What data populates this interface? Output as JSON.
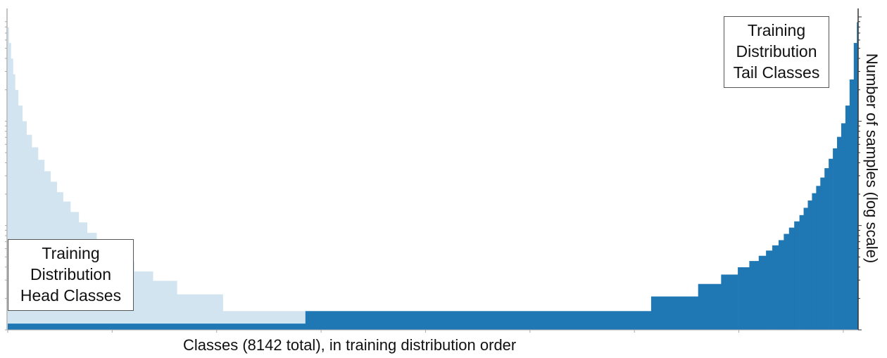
{
  "chart_data": {
    "type": "area",
    "title": "",
    "xlabel": "Classes (8142 total), in training distribution order",
    "ylabel": "Number of samples (log scale)",
    "total_classes": 8142,
    "xlim": [
      0,
      8142
    ],
    "ylim_log10": [
      0,
      3
    ],
    "grid": false,
    "legend": [
      {
        "name": "Training Distribution Head Classes",
        "position": "bottom-left"
      },
      {
        "name": "Training Distribution Tail Classes",
        "position": "top-right"
      }
    ],
    "series": [
      {
        "name": "Head classes (training distribution)",
        "color": "#d3e4f1",
        "step_x_end": [
          10,
          30,
          50,
          70,
          100,
          140,
          180,
          230,
          290,
          350,
          410,
          470,
          530,
          600,
          680,
          760,
          850,
          950,
          1070,
          1210,
          1390,
          1620,
          2060,
          2850
        ],
        "step_log10_y": [
          2.9,
          2.75,
          2.6,
          2.45,
          2.3,
          2.15,
          2.0,
          1.87,
          1.75,
          1.63,
          1.52,
          1.42,
          1.32,
          1.23,
          1.13,
          1.03,
          0.93,
          0.84,
          0.75,
          0.66,
          0.56,
          0.47,
          0.34,
          0.18
        ]
      },
      {
        "name": "Tail classes (training distribution)",
        "color": "#1f77b4",
        "step_x_start": [
          0,
          2850,
          6160,
          6610,
          6830,
          6990,
          7100,
          7190,
          7260,
          7320,
          7380,
          7430,
          7480,
          7530,
          7580,
          7620,
          7660,
          7700,
          7740,
          7780,
          7820,
          7860,
          7900,
          7940,
          7980,
          8020,
          8060,
          8100,
          8130
        ],
        "step_log10_y": [
          0.06,
          0.18,
          0.32,
          0.44,
          0.53,
          0.6,
          0.66,
          0.71,
          0.76,
          0.81,
          0.86,
          0.92,
          0.98,
          1.04,
          1.1,
          1.17,
          1.24,
          1.31,
          1.38,
          1.46,
          1.55,
          1.64,
          1.74,
          1.85,
          1.98,
          2.15,
          2.4,
          2.75,
          2.95
        ]
      }
    ]
  },
  "annotations": {
    "head_label_lines": [
      "Training",
      "Distribution",
      "Head Classes"
    ],
    "tail_label_lines": [
      "Training",
      "Distribution",
      "Tail Classes"
    ]
  }
}
